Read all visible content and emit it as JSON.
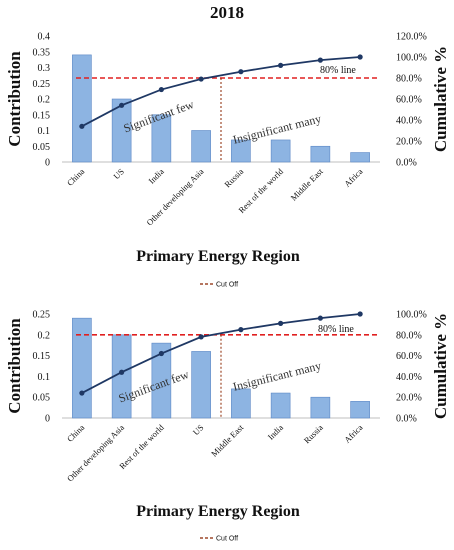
{
  "chart_data": [
    {
      "type": "bar",
      "title": "2018",
      "xlabel": "Primary Energy Region",
      "ylabel": "Contribution",
      "y2label": "Cumulative %",
      "categories": [
        "China",
        "US",
        "India",
        "Other developing Asia",
        "Russia",
        "Rest of the world",
        "Middle East",
        "Africa"
      ],
      "values": [
        0.34,
        0.2,
        0.15,
        0.1,
        0.07,
        0.07,
        0.05,
        0.03
      ],
      "cumulative": [
        0.34,
        0.54,
        0.69,
        0.79,
        0.86,
        0.92,
        0.97,
        1.0
      ],
      "y_ticks": [
        "0",
        "0.05",
        "0.1",
        "0.15",
        "0.2",
        "0.25",
        "0.3",
        "0.35",
        "0.4"
      ],
      "ylim": [
        0,
        0.4
      ],
      "y2_ticks": [
        "0.0%",
        "20.0%",
        "40.0%",
        "60.0%",
        "80.0%",
        "100.0%",
        "120.0%"
      ],
      "y2lim": [
        0,
        1.2
      ],
      "line_label": "80% line",
      "line_value": 0.8,
      "cutoff_after_index": 3,
      "annotations": [
        "Significant few",
        "Insignificant many"
      ],
      "legend": [
        "Cut Off"
      ]
    },
    {
      "type": "bar",
      "title": "",
      "xlabel": "Primary Energy Region",
      "ylabel": "Contribution",
      "y2label": "Cumulative %",
      "categories": [
        "China",
        "Other developing Asia",
        "Rest of the world",
        "US",
        "Middle East",
        "India",
        "Russia",
        "Africa"
      ],
      "values": [
        0.24,
        0.2,
        0.18,
        0.16,
        0.07,
        0.06,
        0.05,
        0.04
      ],
      "cumulative": [
        0.24,
        0.44,
        0.62,
        0.78,
        0.85,
        0.91,
        0.96,
        1.0
      ],
      "y_ticks": [
        "0",
        "0.05",
        "0.1",
        "0.15",
        "0.2",
        "0.25"
      ],
      "ylim": [
        0,
        0.25
      ],
      "y2_ticks": [
        "0.0%",
        "20.0%",
        "40.0%",
        "60.0%",
        "80.0%",
        "100.0%"
      ],
      "y2lim": [
        0,
        1.0
      ],
      "line_label": "80% line",
      "line_value": 0.8,
      "cutoff_after_index": 3,
      "annotations": [
        "Significant few",
        "Insignificant many"
      ],
      "legend": [
        "Cut Off"
      ]
    }
  ],
  "colors": {
    "bar_fill": "#8db4e2",
    "bar_stroke": "#5b87c5",
    "cumulative_line": "#1f3864",
    "threshold_line": "#e02020",
    "cutoff_line": "#8b2500"
  }
}
